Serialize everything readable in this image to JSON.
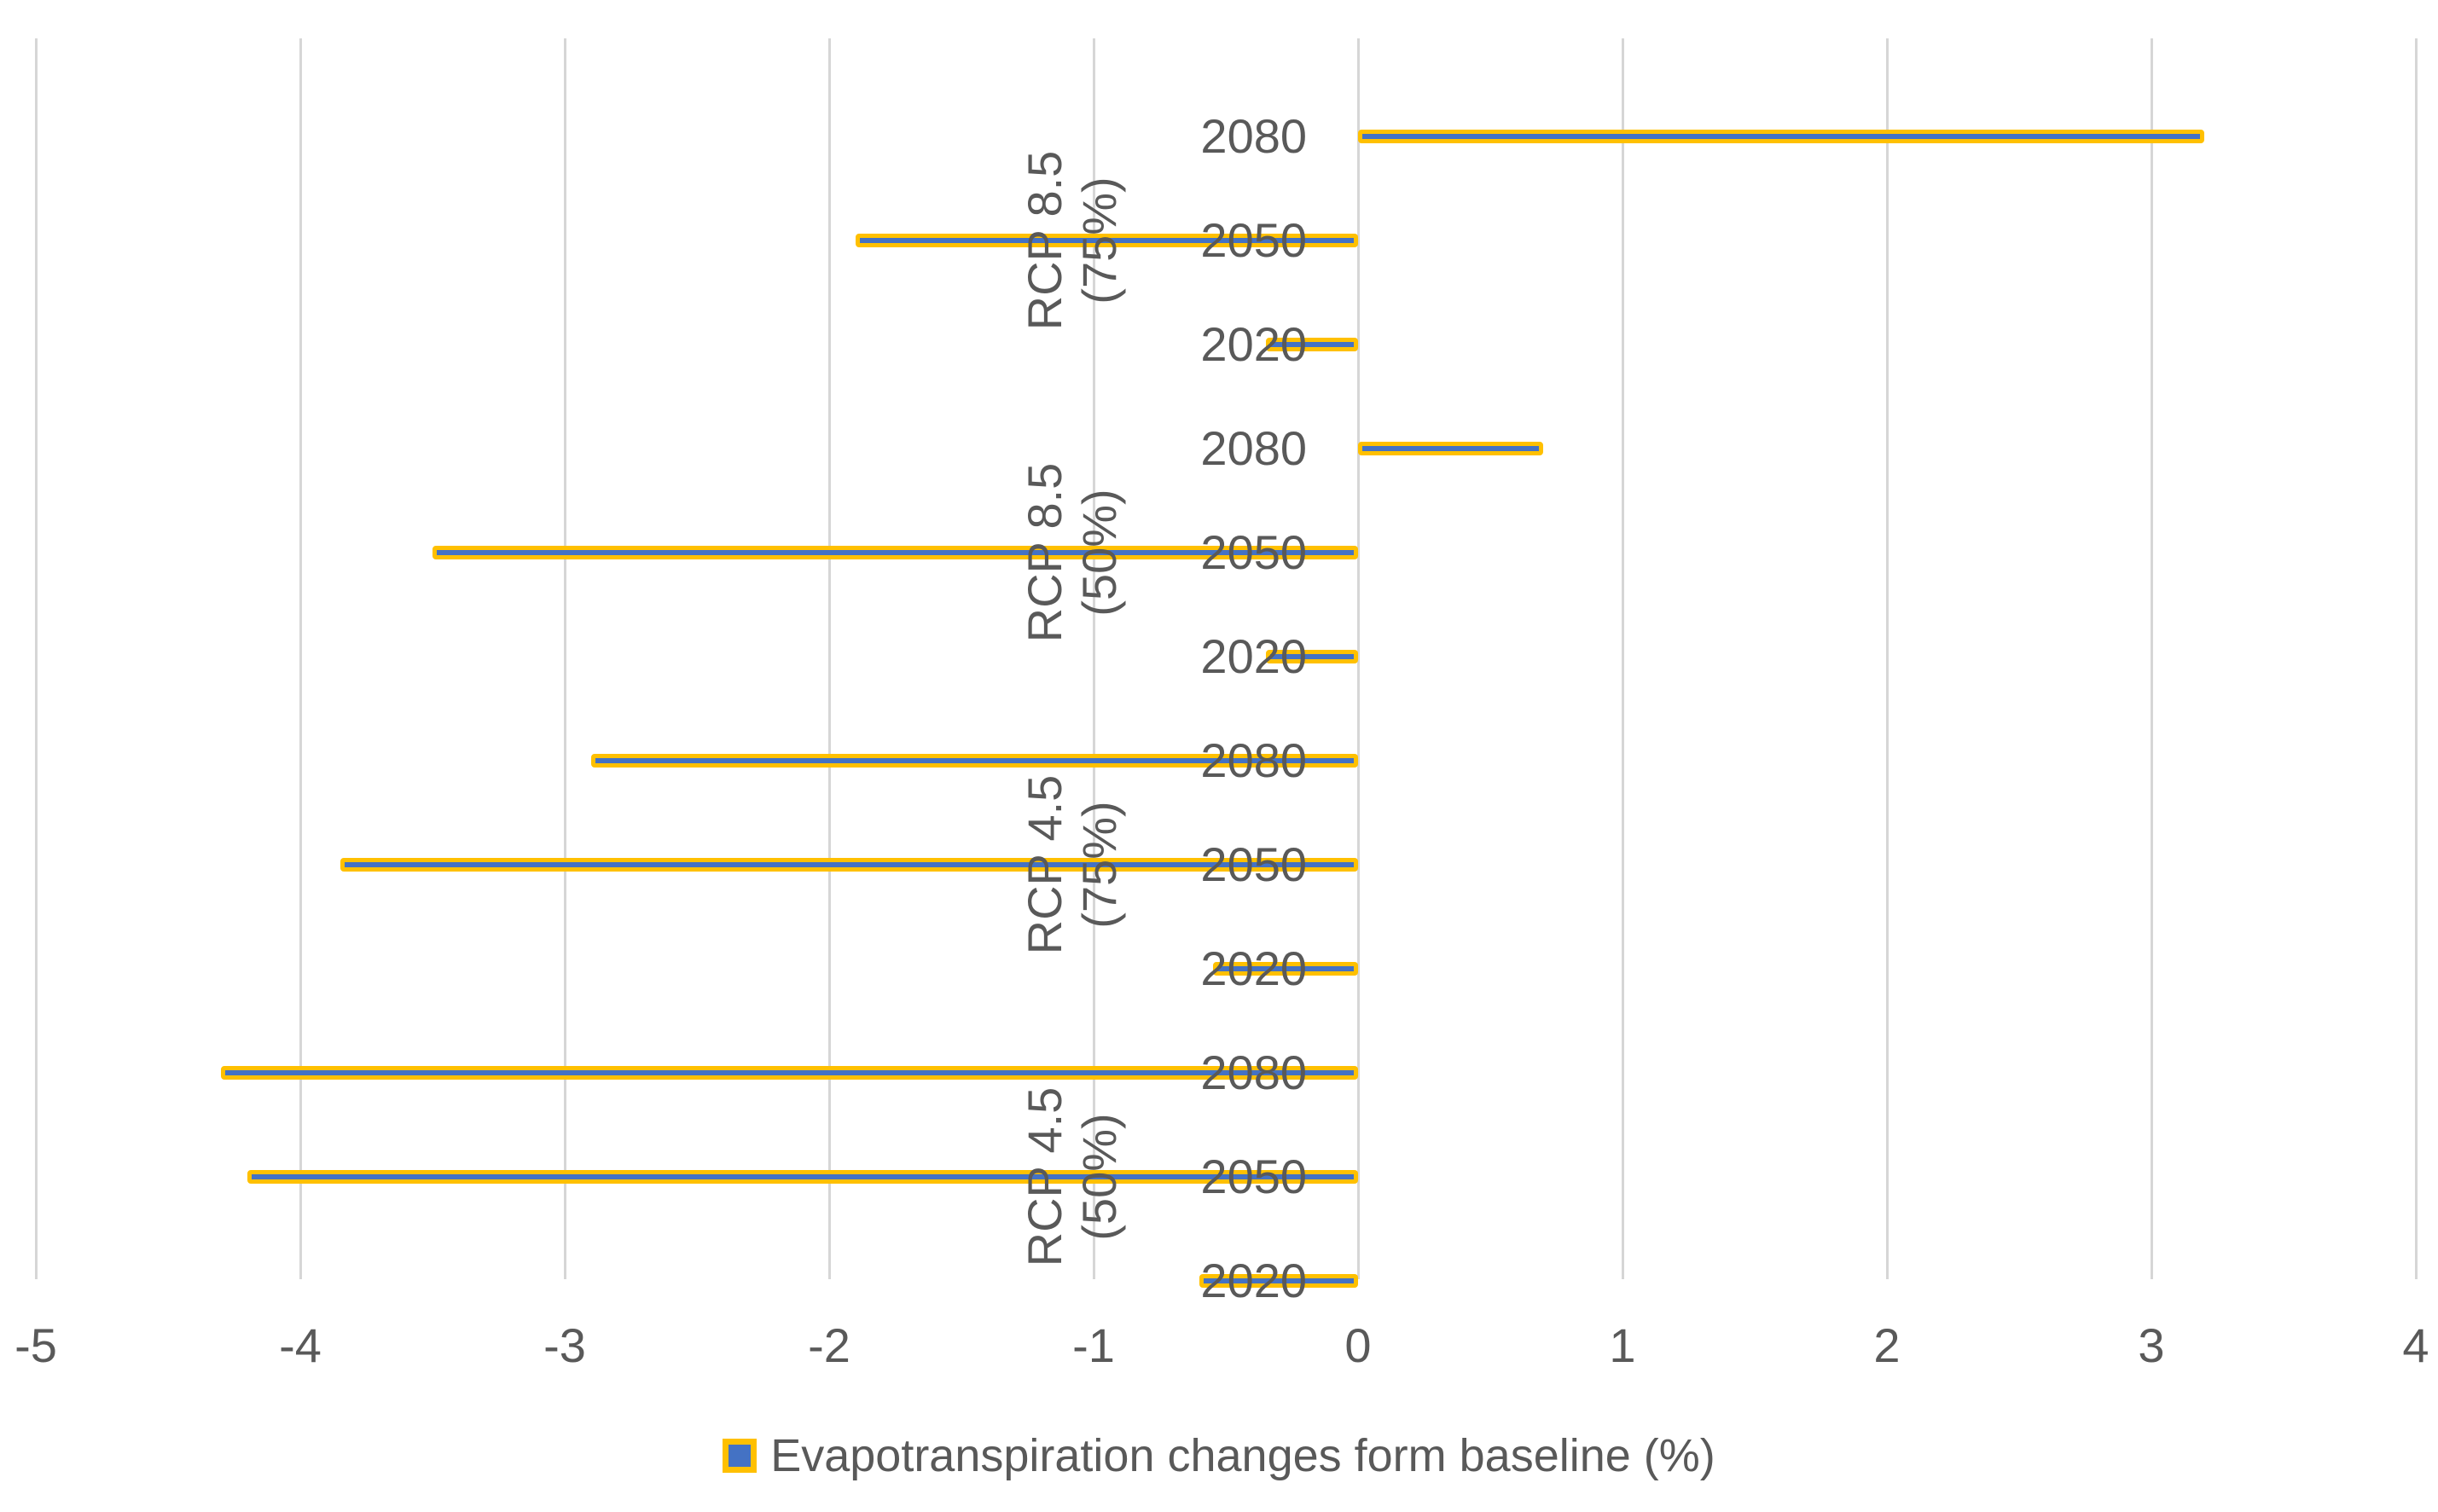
{
  "colors": {
    "bar_fill": "#4472C4",
    "bar_border": "#FFC000",
    "gridline": "#D6D6D6",
    "text": "#595959",
    "background": "#FFFFFF"
  },
  "chart_data": {
    "type": "bar",
    "orientation": "horizontal",
    "title": "",
    "xlabel": "",
    "ylabel": "",
    "xlim": [
      -5,
      4
    ],
    "x_ticks": [
      "-5",
      "-4",
      "-3",
      "-2",
      "-1",
      "0",
      "1",
      "2",
      "3",
      "4"
    ],
    "grid": true,
    "legend_position": "bottom",
    "series_name": "Evapotranspiration changes form baseline (%)",
    "groups": [
      {
        "label": "RCP 8.5 (75%)",
        "label_line1": "RCP 8.5",
        "label_line2": "(75%)",
        "bars": [
          {
            "year": "2080",
            "value": 3.2
          },
          {
            "year": "2050",
            "value": -1.9
          },
          {
            "year": "2020",
            "value": -0.35
          }
        ]
      },
      {
        "label": "RCP 8.5 (50%)",
        "label_line1": "RCP 8.5",
        "label_line2": "(50%)",
        "bars": [
          {
            "year": "2080",
            "value": 0.7
          },
          {
            "year": "2050",
            "value": -3.5
          },
          {
            "year": "2020",
            "value": -0.35
          }
        ]
      },
      {
        "label": "RCP 4.5 (75%)",
        "label_line1": "RCP 4.5",
        "label_line2": "(75%)",
        "bars": [
          {
            "year": "2080",
            "value": -2.9
          },
          {
            "year": "2050",
            "value": -3.85
          },
          {
            "year": "2020",
            "value": -0.55
          }
        ]
      },
      {
        "label": "RCP 4.5 (50%)",
        "label_line1": "RCP 4.5",
        "label_line2": "(50%)",
        "bars": [
          {
            "year": "2080",
            "value": -4.3
          },
          {
            "year": "2050",
            "value": -4.2
          },
          {
            "year": "2020",
            "value": -0.6
          }
        ]
      }
    ],
    "legend": {
      "label": "Evapotranspiration changes form baseline (%)"
    }
  }
}
